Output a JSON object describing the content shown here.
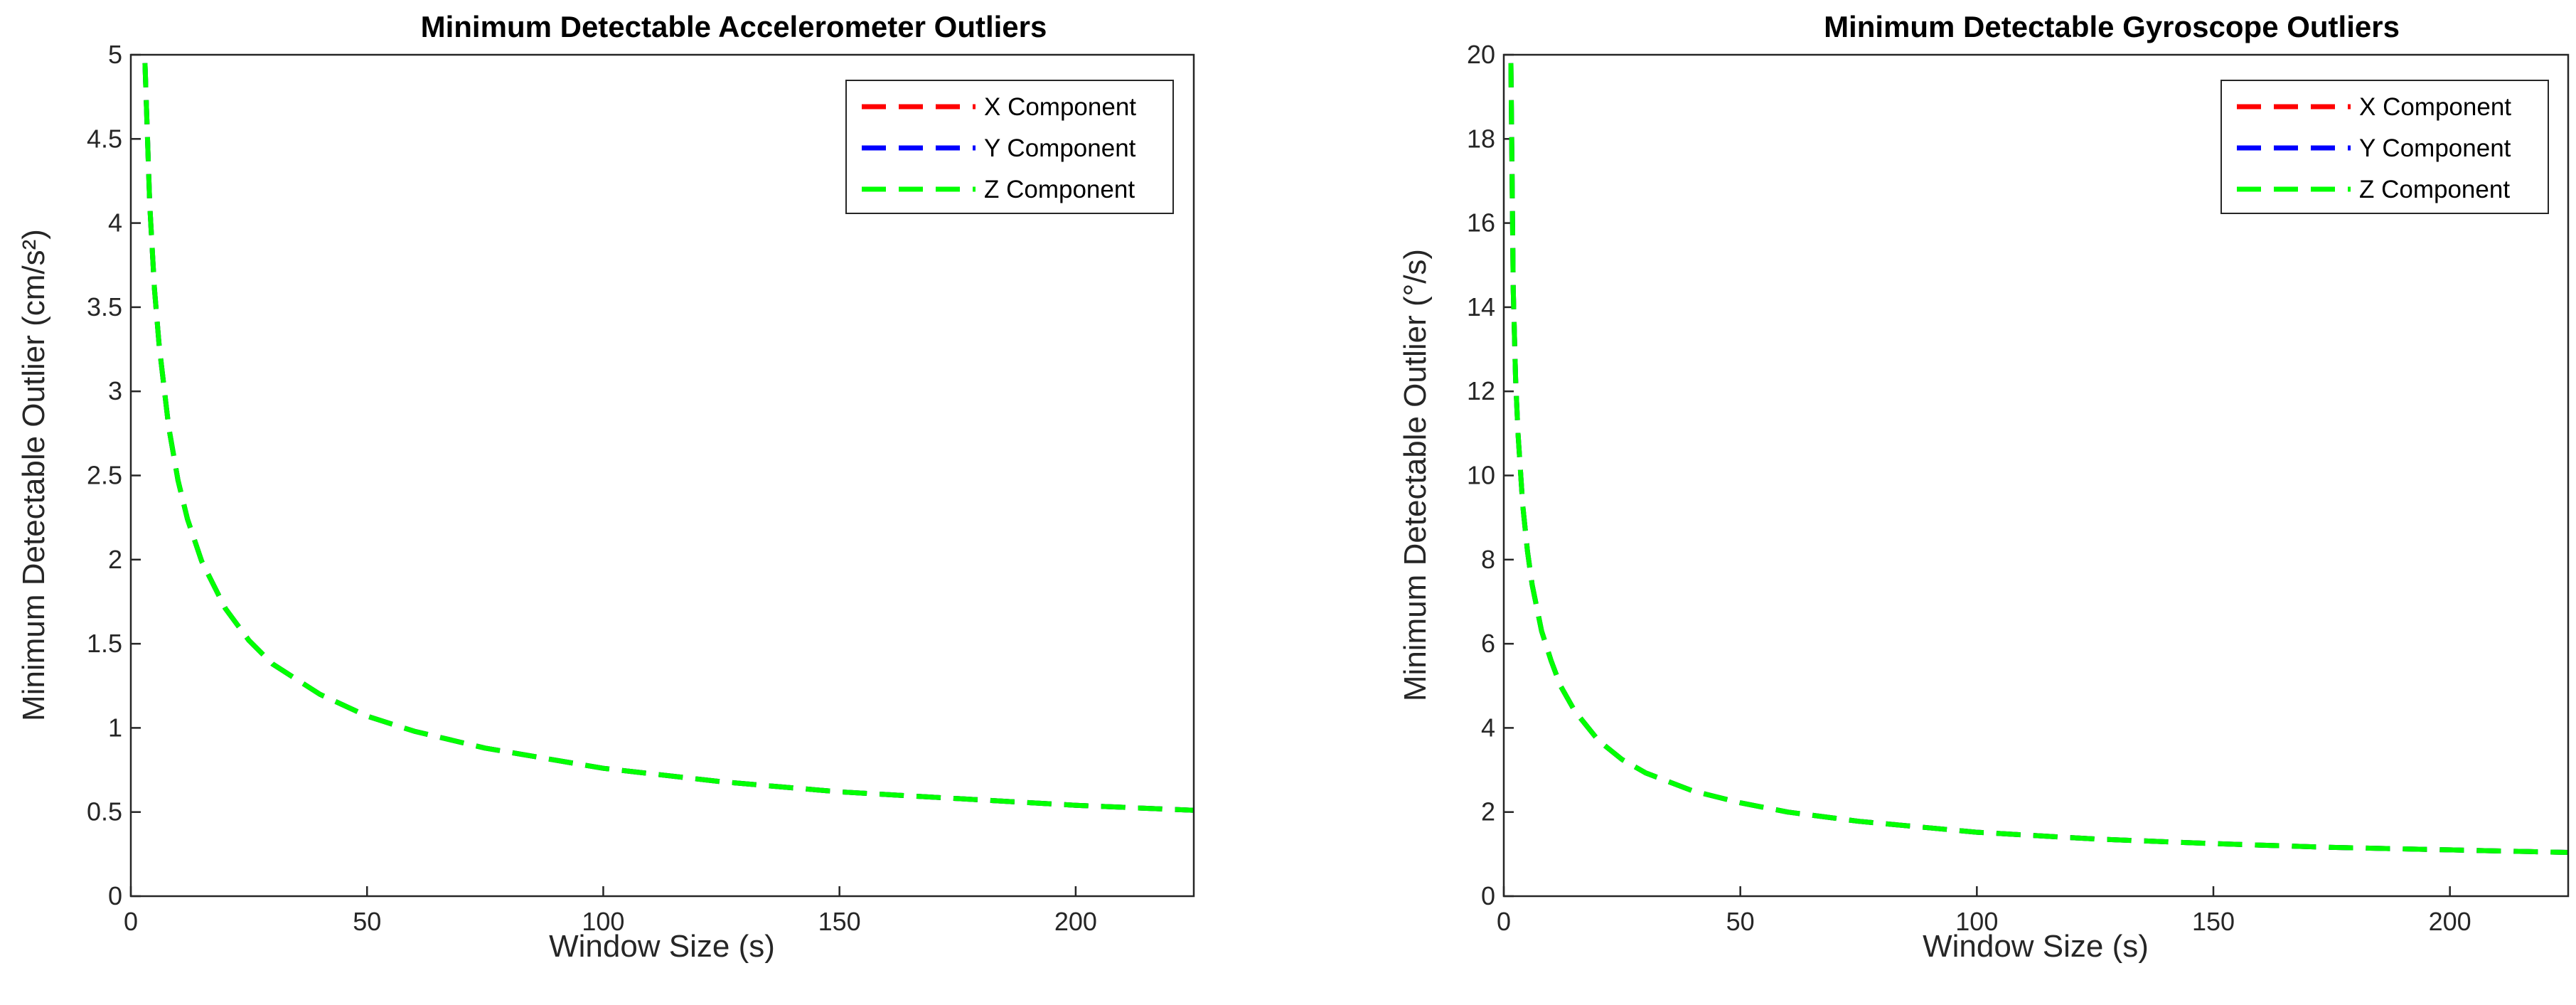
{
  "colors": {
    "x": "#ff0000",
    "y": "#0000ff",
    "z": "#00ff00"
  },
  "chart_data": [
    {
      "type": "line",
      "title": "Minimum Detectable Accelerometer Outliers",
      "xlabel": "Window Size (s)",
      "ylabel": "Minimum Detectable Outlier (cm/s²)",
      "xlim": [
        0,
        225
      ],
      "ylim": [
        0,
        5
      ],
      "xticks": [
        0,
        50,
        100,
        150,
        200
      ],
      "yticks": [
        0,
        0.5,
        1,
        1.5,
        2,
        2.5,
        3,
        3.5,
        4,
        4.5,
        5
      ],
      "xtick_labels": [
        "0",
        "50",
        "100",
        "150",
        "200"
      ],
      "ytick_labels": [
        "0",
        "0.5",
        "1",
        "1.5",
        "2",
        "2.5",
        "3",
        "3.5",
        "4",
        "4.5",
        "5"
      ],
      "legend_position": "top-right",
      "grid": false,
      "x": [
        3,
        4,
        5,
        6,
        8,
        10,
        12,
        15,
        20,
        25,
        30,
        40,
        50,
        60,
        75,
        100,
        125,
        150,
        175,
        200,
        225
      ],
      "series": [
        {
          "name": "X Component",
          "color": "#ff0000",
          "values": [
            4.95,
            4.11,
            3.61,
            3.27,
            2.79,
            2.47,
            2.24,
            1.99,
            1.71,
            1.52,
            1.38,
            1.2,
            1.07,
            0.98,
            0.88,
            0.76,
            0.68,
            0.62,
            0.58,
            0.54,
            0.51
          ]
        },
        {
          "name": "Y Component",
          "color": "#0000ff",
          "values": [
            4.95,
            4.11,
            3.61,
            3.27,
            2.79,
            2.47,
            2.24,
            1.99,
            1.71,
            1.52,
            1.38,
            1.2,
            1.07,
            0.98,
            0.88,
            0.76,
            0.68,
            0.62,
            0.58,
            0.54,
            0.51
          ]
        },
        {
          "name": "Z Component",
          "color": "#00ff00",
          "values": [
            4.95,
            4.11,
            3.61,
            3.27,
            2.79,
            2.47,
            2.24,
            1.99,
            1.71,
            1.52,
            1.38,
            1.2,
            1.07,
            0.98,
            0.88,
            0.76,
            0.68,
            0.62,
            0.58,
            0.54,
            0.51
          ]
        }
      ]
    },
    {
      "type": "line",
      "title": "Minimum Detectable Gyroscope Outliers",
      "xlabel": "Window Size (s)",
      "ylabel": "Minimum Detectable Outlier (°/s)",
      "xlim": [
        0,
        225
      ],
      "ylim": [
        0,
        20
      ],
      "xticks": [
        0,
        50,
        100,
        150,
        200
      ],
      "yticks": [
        0,
        2,
        4,
        6,
        8,
        10,
        12,
        14,
        16,
        18,
        20
      ],
      "xtick_labels": [
        "0",
        "50",
        "100",
        "150",
        "200"
      ],
      "ytick_labels": [
        "0",
        "2",
        "4",
        "6",
        "8",
        "10",
        "12",
        "14",
        "16",
        "18",
        "20"
      ],
      "legend_position": "top-right",
      "grid": false,
      "x": [
        1.5,
        2,
        2.5,
        3,
        4,
        5,
        6,
        8,
        10,
        12,
        15,
        20,
        25,
        30,
        40,
        50,
        60,
        75,
        100,
        125,
        150,
        175,
        200,
        225
      ],
      "series": [
        {
          "name": "X Component",
          "color": "#ff0000",
          "values": [
            19.8,
            14.4,
            12.3,
            11.0,
            9.3,
            8.2,
            7.4,
            6.3,
            5.6,
            5.0,
            4.4,
            3.7,
            3.25,
            2.93,
            2.5,
            2.22,
            2.0,
            1.78,
            1.52,
            1.36,
            1.25,
            1.16,
            1.1,
            1.04
          ]
        },
        {
          "name": "Y Component",
          "color": "#0000ff",
          "values": [
            19.8,
            14.4,
            12.3,
            11.0,
            9.3,
            8.2,
            7.4,
            6.3,
            5.6,
            5.0,
            4.4,
            3.7,
            3.25,
            2.93,
            2.5,
            2.22,
            2.0,
            1.78,
            1.52,
            1.36,
            1.25,
            1.16,
            1.1,
            1.04
          ]
        },
        {
          "name": "Z Component",
          "color": "#00ff00",
          "values": [
            19.8,
            14.4,
            12.3,
            11.0,
            9.3,
            8.2,
            7.4,
            6.3,
            5.6,
            5.0,
            4.4,
            3.7,
            3.25,
            2.93,
            2.5,
            2.22,
            2.0,
            1.78,
            1.52,
            1.36,
            1.25,
            1.16,
            1.1,
            1.04
          ]
        }
      ]
    }
  ]
}
